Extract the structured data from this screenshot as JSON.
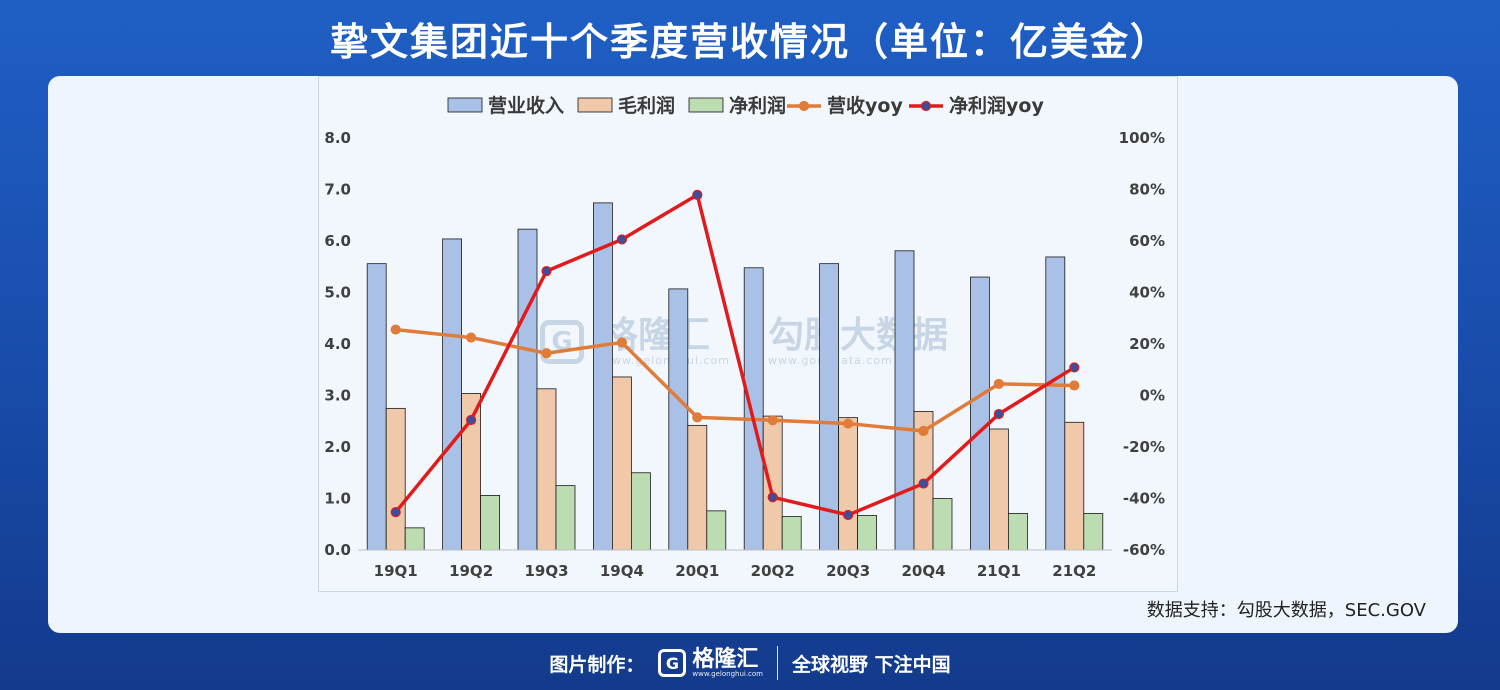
{
  "title": "挚文集团近十个季度营收情况（单位：亿美金）",
  "source": "数据支持：勾股大数据，SEC.GOV",
  "watermark": {
    "logo_letter": "G",
    "brand": "格隆汇",
    "brand_url": "www.gelonghui.com",
    "partner": "勾股大数据",
    "partner_url": "www.gogudata.com"
  },
  "footer": {
    "made_by": "图片制作：",
    "logo_letter": "G",
    "brand": "格隆汇",
    "brand_url": "www.gelonghui.com",
    "slogan": "全球视野 下注中国"
  },
  "colors": {
    "revenue": "#a9c1e6",
    "gross": "#f0c9ab",
    "net": "#bcdcb1",
    "revenue_yoy": "#e07b39",
    "net_yoy": "#e11b1b",
    "net_yoy_marker": "#3b4f9c"
  },
  "chart_data": {
    "type": "bar",
    "categories": [
      "19Q1",
      "19Q2",
      "19Q3",
      "19Q4",
      "20Q1",
      "20Q2",
      "20Q3",
      "20Q4",
      "21Q1",
      "21Q2"
    ],
    "series": [
      {
        "name": "营业收入",
        "type": "bar",
        "axis": "left",
        "values": [
          5.56,
          6.04,
          6.23,
          6.74,
          5.07,
          5.48,
          5.56,
          5.81,
          5.3,
          5.69
        ]
      },
      {
        "name": "毛利润",
        "type": "bar",
        "axis": "left",
        "values": [
          2.75,
          3.04,
          3.13,
          3.36,
          2.42,
          2.6,
          2.57,
          2.69,
          2.35,
          2.48
        ]
      },
      {
        "name": "净利润",
        "type": "bar",
        "axis": "left",
        "values": [
          0.43,
          1.06,
          1.25,
          1.5,
          0.76,
          0.65,
          0.67,
          1.0,
          0.71,
          0.71
        ]
      },
      {
        "name": "营收yoy",
        "type": "line",
        "axis": "right",
        "values": [
          25.6,
          22.5,
          16.4,
          20.6,
          -8.5,
          -9.6,
          -10.9,
          -13.8,
          4.5,
          3.9
        ]
      },
      {
        "name": "净利润yoy",
        "type": "line",
        "axis": "right",
        "values": [
          -45.3,
          -9.5,
          48.3,
          60.6,
          77.9,
          -39.5,
          -46.4,
          -34.2,
          -7.2,
          10.9
        ]
      }
    ],
    "y_left": {
      "min": 0,
      "max": 8,
      "ticks": [
        "0.0",
        "1.0",
        "2.0",
        "3.0",
        "4.0",
        "5.0",
        "6.0",
        "7.0",
        "8.0"
      ]
    },
    "y_right": {
      "min": -60,
      "max": 100,
      "ticks": [
        "-60%",
        "-40%",
        "-20%",
        "0%",
        "20%",
        "40%",
        "60%",
        "80%",
        "100%"
      ]
    },
    "legend_position": "top",
    "grid": false
  }
}
